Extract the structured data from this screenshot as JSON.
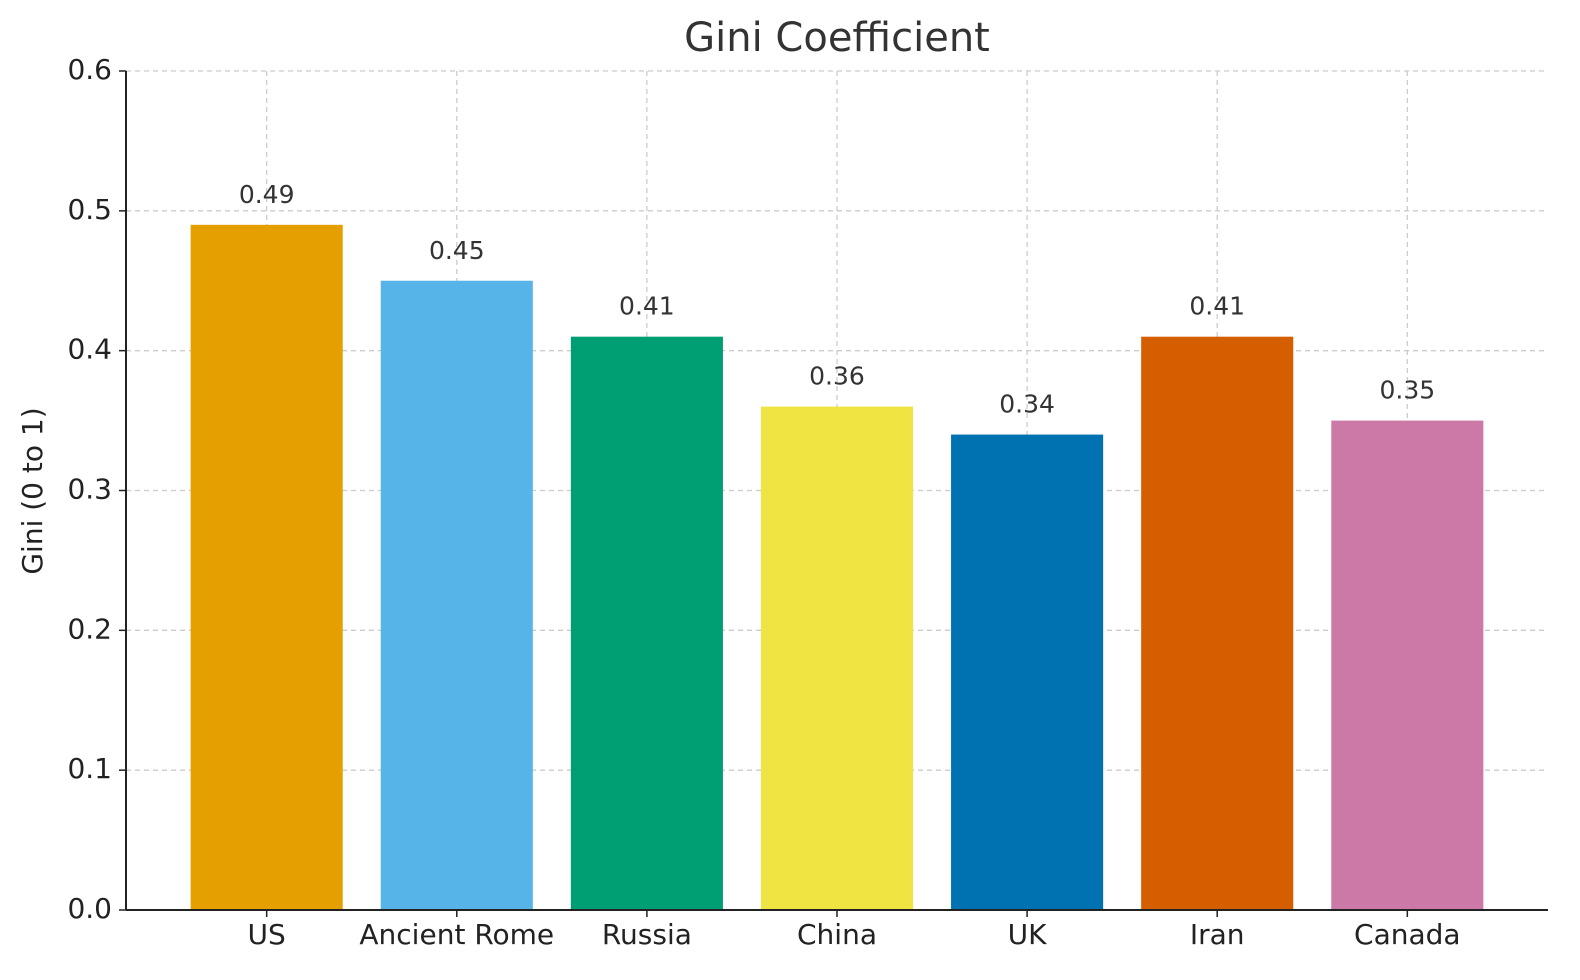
{
  "chart_data": {
    "type": "bar",
    "title": "Gini Coefficient",
    "y_label": "Gini (0 to 1)",
    "categories": [
      "US",
      "Ancient Rome",
      "Russia",
      "China",
      "UK",
      "Iran",
      "Canada"
    ],
    "values": [
      0.49,
      0.45,
      0.41,
      0.36,
      0.34,
      0.41,
      0.35
    ],
    "colors": [
      "#e69f00",
      "#56b4e9",
      "#009e73",
      "#f0e442",
      "#0072b2",
      "#d55e00",
      "#cc79a7"
    ],
    "ylim": [
      0,
      0.6
    ],
    "yticks": [
      {
        "value": 0,
        "label": "0.0"
      },
      0.1,
      0.2,
      0.3,
      0.4,
      0.5,
      0.6
    ],
    "grid": true
  }
}
